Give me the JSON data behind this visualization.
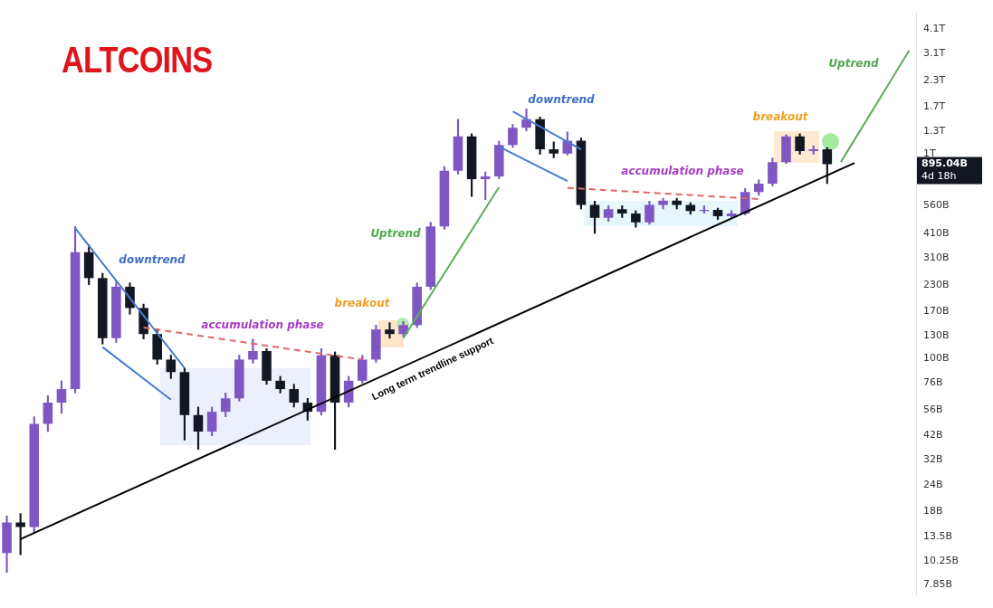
{
  "chart_data": {
    "type": "candlestick",
    "title": "ALTCOINS",
    "categories": [
      null,
      null,
      null,
      null,
      null,
      null,
      null,
      null,
      null,
      null,
      null,
      null,
      null,
      null,
      null,
      null,
      null,
      null,
      null,
      null,
      null,
      null,
      null,
      null,
      null,
      null,
      null,
      null,
      null,
      null,
      null,
      null,
      null,
      null,
      null,
      null,
      null,
      null,
      null,
      null,
      null,
      null,
      null,
      null,
      null,
      null,
      null,
      null,
      null,
      null,
      null,
      null,
      null,
      null,
      null,
      null,
      null,
      null,
      null,
      null,
      null,
      null,
      null,
      null,
      null,
      null,
      null
    ],
    "ohlc": [
      [
        11200000000.0,
        17000000000.0,
        9000000000.0,
        15800000000.0
      ],
      [
        15800000000.0,
        17500000000.0,
        11000000000.0,
        15000000000.0
      ],
      [
        15000000000.0,
        52000000000.0,
        14000000000.0,
        48000000000.0
      ],
      [
        48000000000.0,
        66000000000.0,
        44000000000.0,
        61000000000.0
      ],
      [
        61000000000.0,
        78000000000.0,
        54000000000.0,
        71000000000.0
      ],
      [
        71000000000.0,
        444000000000.0,
        68000000000.0,
        332000000000.0
      ],
      [
        332000000000.0,
        360000000000.0,
        230000000000.0,
        248000000000.0
      ],
      [
        248000000000.0,
        262000000000.0,
        118000000000.0,
        126000000000.0
      ],
      [
        126000000000.0,
        240000000000.0,
        120000000000.0,
        225000000000.0
      ],
      [
        225000000000.0,
        235000000000.0,
        165000000000.0,
        177000000000.0
      ],
      [
        177000000000.0,
        185000000000.0,
        125000000000.0,
        132000000000.0
      ],
      [
        132000000000.0,
        140000000000.0,
        94000000000.0,
        99000000000.0
      ],
      [
        99000000000.0,
        104000000000.0,
        80000000000.0,
        86000000000.0
      ],
      [
        86000000000.0,
        90000000000.0,
        40000000000.0,
        53000000000.0
      ],
      [
        53000000000.0,
        58000000000.0,
        36000000000.0,
        44000000000.0
      ],
      [
        44000000000.0,
        58000000000.0,
        42000000000.0,
        55000000000.0
      ],
      [
        55000000000.0,
        68000000000.0,
        52000000000.0,
        64000000000.0
      ],
      [
        64000000000.0,
        104000000000.0,
        62000000000.0,
        99000000000.0
      ],
      [
        99000000000.0,
        125000000000.0,
        95000000000.0,
        109000000000.0
      ],
      [
        109000000000.0,
        112000000000.0,
        75000000000.0,
        78000000000.0
      ],
      [
        78000000000.0,
        82000000000.0,
        68000000000.0,
        71000000000.0
      ],
      [
        71000000000.0,
        75000000000.0,
        58000000000.0,
        61000000000.0
      ],
      [
        61000000000.0,
        64000000000.0,
        50000000000.0,
        55000000000.0
      ],
      [
        55000000000.0,
        112000000000.0,
        53000000000.0,
        104000000000.0
      ],
      [
        104000000000.0,
        108000000000.0,
        36000000000.0,
        61000000000.0
      ],
      [
        61000000000.0,
        82000000000.0,
        58000000000.0,
        78000000000.0
      ],
      [
        78000000000.0,
        104000000000.0,
        76000000000.0,
        99000000000.0
      ],
      [
        99000000000.0,
        146000000000.0,
        96000000000.0,
        139000000000.0
      ],
      [
        139000000000.0,
        150000000000.0,
        126000000000.0,
        132000000000.0
      ],
      [
        132000000000.0,
        152000000000.0,
        128000000000.0,
        146000000000.0
      ],
      [
        146000000000.0,
        235000000000.0,
        142000000000.0,
        225000000000.0
      ],
      [
        225000000000.0,
        465000000000.0,
        218000000000.0,
        444000000000.0
      ],
      [
        444000000000.0,
        870000000000.0,
        430000000000.0,
        831000000000.0
      ],
      [
        831000000000.0,
        1485000000000.0,
        800000000000.0,
        1224000000000.0
      ],
      [
        1224000000000.0,
        1260000000000.0,
        622000000000.0,
        755000000000.0
      ],
      [
        755000000000.0,
        820000000000.0,
        600000000000.0,
        780000000000.0
      ],
      [
        780000000000.0,
        1160000000000.0,
        760000000000.0,
        1111000000000.0
      ],
      [
        1111000000000.0,
        1400000000000.0,
        1080000000000.0,
        1348000000000.0
      ],
      [
        1348000000000.0,
        1668000000000.0,
        1300000000000.0,
        1485000000000.0
      ],
      [
        1485000000000.0,
        1520000000000.0,
        1000000000000.0,
        1058000000000.0
      ],
      [
        1058000000000.0,
        1150000000000.0,
        960000000000.0,
        1009000000000.0
      ],
      [
        1009000000000.0,
        1285000000000.0,
        990000000000.0,
        1166000000000.0
      ],
      [
        1166000000000.0,
        1200000000000.0,
        540000000000.0,
        565000000000.0
      ],
      [
        565000000000.0,
        590000000000.0,
        410000000000.0,
        489000000000.0
      ],
      [
        489000000000.0,
        560000000000.0,
        470000000000.0,
        538000000000.0
      ],
      [
        538000000000.0,
        560000000000.0,
        490000000000.0,
        513000000000.0
      ],
      [
        513000000000.0,
        530000000000.0,
        440000000000.0,
        465000000000.0
      ],
      [
        465000000000.0,
        590000000000.0,
        455000000000.0,
        565000000000.0
      ],
      [
        565000000000.0,
        610000000000.0,
        540000000000.0,
        593000000000.0
      ],
      [
        593000000000.0,
        610000000000.0,
        540000000000.0,
        565000000000.0
      ],
      [
        565000000000.0,
        580000000000.0,
        510000000000.0,
        528000000000.0
      ],
      [
        528000000000.0,
        560000000000.0,
        515000000000.0,
        535000000000.0
      ],
      [
        535000000000.0,
        545000000000.0,
        480000000000.0,
        498000000000.0
      ],
      [
        498000000000.0,
        530000000000.0,
        485000000000.0,
        513000000000.0
      ],
      [
        513000000000.0,
        680000000000.0,
        505000000000.0,
        653000000000.0
      ],
      [
        653000000000.0,
        750000000000.0,
        630000000000.0,
        719000000000.0
      ],
      [
        719000000000.0,
        960000000000.0,
        700000000000.0,
        916000000000.0
      ],
      [
        916000000000.0,
        1248000000000.0,
        900000000000.0,
        1224000000000.0
      ],
      [
        1224000000000.0,
        1260000000000.0,
        1000000000000.0,
        1038000000000.0
      ],
      [
        1038000000000.0,
        1100000000000.0,
        1000000000000.0,
        1058000000000.0
      ],
      [
        1058000000000.0,
        1080000000000.0,
        719000000000.0,
        895040000000.0
      ],
      null,
      null,
      null,
      null,
      null,
      null
    ],
    "colors": [
      "#7e57c2",
      "#131722",
      "#7e57c2",
      "#7e57c2",
      "#7e57c2",
      "#7e57c2",
      "#131722",
      "#131722",
      "#7e57c2",
      "#131722",
      "#131722",
      "#131722",
      "#131722",
      "#131722",
      "#131722",
      "#7e57c2",
      "#7e57c2",
      "#7e57c2",
      "#7e57c2",
      "#131722",
      "#131722",
      "#131722",
      "#131722",
      "#7e57c2",
      "#131722",
      "#7e57c2",
      "#7e57c2",
      "#7e57c2",
      "#131722",
      "#7e57c2",
      "#7e57c2",
      "#7e57c2",
      "#7e57c2",
      "#7e57c2",
      "#131722",
      "#7e57c2",
      "#7e57c2",
      "#7e57c2",
      "#7e57c2",
      "#131722",
      "#131722",
      "#7e57c2",
      "#131722",
      "#131722",
      "#7e57c2",
      "#131722",
      "#131722",
      "#7e57c2",
      "#7e57c2",
      "#131722",
      "#131722",
      "#7e57c2",
      "#131722",
      "#7e57c2",
      "#7e57c2",
      "#7e57c2",
      "#7e57c2",
      "#7e57c2",
      "#131722",
      "#7e57c2",
      "#131722",
      null,
      null,
      null,
      null,
      null,
      null
    ],
    "series": [
      {
        "type": "line",
        "color": "#000000",
        "values": [
          null,
          13100000000.0,
          null,
          null,
          null,
          null,
          null,
          null,
          null,
          null,
          null,
          null,
          null,
          null,
          null,
          null,
          null,
          null,
          null,
          null,
          null,
          null,
          null,
          null,
          null,
          null,
          null,
          null,
          null,
          null,
          null,
          null,
          null,
          null,
          null,
          null,
          null,
          null,
          null,
          null,
          null,
          null,
          null,
          null,
          null,
          null,
          null,
          null,
          null,
          null,
          null,
          null,
          null,
          null,
          null,
          null,
          null,
          null,
          null,
          null,
          null,
          null,
          907000000000.0,
          null,
          null,
          null,
          null
        ]
      },
      {
        "type": "line",
        "color": "#4a7bd0",
        "values": [
          null,
          null,
          null,
          null,
          null,
          435000000000.0,
          null,
          null,
          null,
          null,
          null,
          null,
          null,
          90000000000.0,
          null,
          null,
          null,
          null,
          null,
          null,
          null,
          null,
          null,
          null,
          null,
          null,
          null,
          null,
          null,
          null,
          null,
          null,
          null,
          null,
          null,
          null,
          null,
          null,
          null,
          null,
          null,
          null,
          null,
          null,
          null,
          null,
          null,
          null,
          null,
          null,
          null,
          null,
          null,
          null,
          null,
          null,
          null,
          null,
          null,
          null,
          null,
          null,
          null,
          null,
          null,
          null,
          null
        ]
      },
      {
        "type": "line",
        "color": "#4a7bd0",
        "values": [
          null,
          null,
          null,
          null,
          null,
          null,
          null,
          114000000000.0,
          null,
          null,
          null,
          null,
          63000000000.0,
          null,
          null,
          null,
          null,
          null,
          null,
          null,
          null,
          null,
          null,
          null,
          null,
          null,
          null,
          null,
          null,
          null,
          null,
          null,
          null,
          null,
          null,
          null,
          null,
          null,
          null,
          null,
          null,
          null,
          null,
          null,
          null,
          null,
          null,
          null,
          null,
          null,
          null,
          null,
          null,
          null,
          null,
          null,
          null,
          null,
          null,
          null,
          null,
          null,
          null,
          null,
          null,
          null,
          null
        ]
      },
      {
        "type": "line",
        "color": "#e06666",
        "line_style": "dashed",
        "values": [
          null,
          null,
          null,
          null,
          null,
          null,
          null,
          null,
          null,
          null,
          142000000000.0,
          null,
          null,
          null,
          null,
          null,
          null,
          null,
          null,
          null,
          null,
          null,
          null,
          null,
          null,
          null,
          99000000000.0,
          null,
          null,
          null,
          null,
          null,
          null,
          null,
          null,
          null,
          null,
          null,
          null,
          null,
          null,
          null,
          null,
          null,
          null,
          null,
          null,
          null,
          null,
          null,
          null,
          null,
          null,
          null,
          null,
          null,
          null,
          null,
          null,
          null,
          null,
          null,
          null,
          null,
          null,
          null,
          null
        ]
      },
      {
        "type": "line",
        "color": "#5cae5c",
        "values": [
          null,
          null,
          null,
          null,
          null,
          null,
          null,
          null,
          null,
          null,
          null,
          null,
          null,
          null,
          null,
          null,
          null,
          null,
          null,
          null,
          null,
          null,
          null,
          null,
          null,
          null,
          null,
          null,
          null,
          126000000000.0,
          null,
          null,
          null,
          null,
          null,
          null,
          692000000000.0,
          null,
          null,
          null,
          null,
          null,
          null,
          null,
          null,
          null,
          null,
          null,
          null,
          null,
          null,
          null,
          null,
          null,
          null,
          null,
          null,
          null,
          null,
          null,
          null,
          null,
          null,
          null,
          null,
          null,
          null
        ]
      },
      {
        "type": "line",
        "color": "#4a7bd0",
        "values": [
          null,
          null,
          null,
          null,
          null,
          null,
          null,
          null,
          null,
          null,
          null,
          null,
          null,
          null,
          null,
          null,
          null,
          null,
          null,
          null,
          null,
          null,
          null,
          null,
          null,
          null,
          null,
          null,
          null,
          null,
          null,
          null,
          null,
          null,
          null,
          null,
          null,
          1620000000000.0,
          null,
          null,
          null,
          null,
          1058000000000.0,
          null,
          null,
          null,
          null,
          null,
          null,
          null,
          null,
          null,
          null,
          null,
          null,
          null,
          null,
          null,
          null,
          null,
          null,
          null,
          null,
          null,
          null,
          null,
          null
        ]
      },
      {
        "type": "line",
        "color": "#4a7bd0",
        "values": [
          null,
          null,
          null,
          null,
          null,
          null,
          null,
          null,
          null,
          null,
          null,
          null,
          null,
          null,
          null,
          null,
          null,
          null,
          null,
          null,
          null,
          null,
          null,
          null,
          null,
          null,
          null,
          null,
          null,
          null,
          null,
          null,
          null,
          null,
          null,
          null,
          1090000000000.0,
          null,
          null,
          null,
          null,
          740000000000.0,
          null,
          null,
          null,
          null,
          null,
          null,
          null,
          null,
          null,
          null,
          null,
          null,
          null,
          null,
          null,
          null,
          null,
          null,
          null,
          null,
          null,
          null,
          null,
          null,
          null
        ]
      },
      {
        "type": "line",
        "color": "#e06666",
        "line_style": "dashed",
        "values": [
          null,
          null,
          null,
          null,
          null,
          null,
          null,
          null,
          null,
          null,
          null,
          null,
          null,
          null,
          null,
          null,
          null,
          null,
          null,
          null,
          null,
          null,
          null,
          null,
          null,
          null,
          null,
          null,
          null,
          null,
          null,
          null,
          null,
          null,
          null,
          null,
          null,
          null,
          null,
          null,
          null,
          685000000000.0,
          null,
          null,
          null,
          null,
          null,
          null,
          null,
          null,
          null,
          null,
          null,
          null,
          null,
          604000000000.0,
          null,
          null,
          null,
          null,
          null,
          null,
          null,
          null,
          null,
          null,
          null
        ]
      },
      {
        "type": "line",
        "color": "#5cae5c",
        "values": [
          null,
          null,
          null,
          null,
          null,
          null,
          null,
          null,
          null,
          null,
          null,
          null,
          null,
          null,
          null,
          null,
          null,
          null,
          null,
          null,
          null,
          null,
          null,
          null,
          null,
          null,
          null,
          null,
          null,
          null,
          null,
          null,
          null,
          null,
          null,
          null,
          null,
          null,
          null,
          null,
          null,
          null,
          null,
          null,
          null,
          null,
          null,
          null,
          null,
          null,
          null,
          null,
          null,
          null,
          null,
          null,
          null,
          null,
          null,
          null,
          null,
          916000000000.0,
          null,
          null,
          null,
          null,
          3220000000000.0
        ]
      }
    ],
    "ylim": [
      7000000000.0,
      4900000000000.0
    ],
    "yticks": [
      {
        "value": 4100000000000.0,
        "label": "4.1T"
      },
      {
        "value": 3100000000000.0,
        "label": "3.1T"
      },
      {
        "value": 2300000000000.0,
        "label": "2.3T"
      },
      {
        "value": 1700000000000.0,
        "label": "1.7T"
      },
      {
        "value": 1300000000000.0,
        "label": "1.3T"
      },
      {
        "value": 1000000000000.0,
        "label": "1T"
      },
      {
        "value": 560000000000.0,
        "label": "560B"
      },
      {
        "value": 410000000000.0,
        "label": "410B"
      },
      {
        "value": 310000000000.0,
        "label": "310B"
      },
      {
        "value": 230000000000.0,
        "label": "230B"
      },
      {
        "value": 170000000000.0,
        "label": "170B"
      },
      {
        "value": 130000000000.0,
        "label": "130B"
      },
      {
        "value": 100000000000.0,
        "label": "100B"
      },
      {
        "value": 76000000000.0,
        "label": "76B"
      },
      {
        "value": 56000000000.0,
        "label": "56B"
      },
      {
        "value": 42000000000.0,
        "label": "42B"
      },
      {
        "value": 32000000000.0,
        "label": "32B"
      },
      {
        "value": 24000000000.0,
        "label": "24B"
      },
      {
        "value": 18000000000.0,
        "label": "18B"
      },
      {
        "value": 13500000000.0,
        "label": "13.5B"
      },
      {
        "value": 10250000000.0,
        "label": "10.25B"
      },
      {
        "value": 7850000000.0,
        "label": "7.85B"
      }
    ],
    "log": true,
    "grid": false,
    "legend": false,
    "tick_labels": "y",
    "annotations": [
      "downtrend",
      "accumulation phase",
      "breakout",
      "Uptrend",
      "downtrend",
      "accumulation phase",
      "breakout",
      "Uptrend",
      "Long term trendline support",
      "895.04B",
      "4d 18h"
    ]
  }
}
